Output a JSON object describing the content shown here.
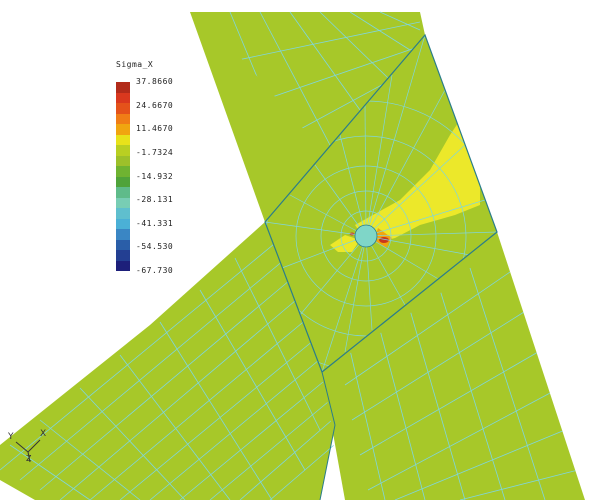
{
  "legend": {
    "title": "Sigma_X",
    "levels": [
      {
        "label": "37.8660",
        "color": "#b22b1a"
      },
      {
        "label": "24.6670",
        "color": "#e4521a"
      },
      {
        "label": "11.4670",
        "color": "#f0a510"
      },
      {
        "label": "-1.7324",
        "color": "#9dc02a"
      },
      {
        "label": "-14.932",
        "color": "#4fa33a"
      },
      {
        "label": "-28.131",
        "color": "#78cdb4"
      },
      {
        "label": "-41.331",
        "color": "#4bb0d6"
      },
      {
        "label": "-54.530",
        "color": "#2a5ea8"
      },
      {
        "label": "-67.730",
        "color": "#1d1f7a"
      }
    ],
    "band_colors": [
      "#b22b1a",
      "#d9381e",
      "#e4521a",
      "#f07d16",
      "#f0a510",
      "#e8e21a",
      "#b9cf22",
      "#9dc02a",
      "#6fb331",
      "#4fa33a",
      "#5fbb8a",
      "#78cdb4",
      "#5fbfce",
      "#4bb0d6",
      "#3a86c4",
      "#2a5ea8",
      "#233f92",
      "#1d1f7a"
    ]
  },
  "triad": {
    "x_label": "X",
    "y_label": "Y",
    "z_label": "Z"
  },
  "colors": {
    "body": "#a7c829",
    "mesh": "#7fd6dc",
    "edge": "#2a7d8a",
    "hot": "#ece82a"
  }
}
